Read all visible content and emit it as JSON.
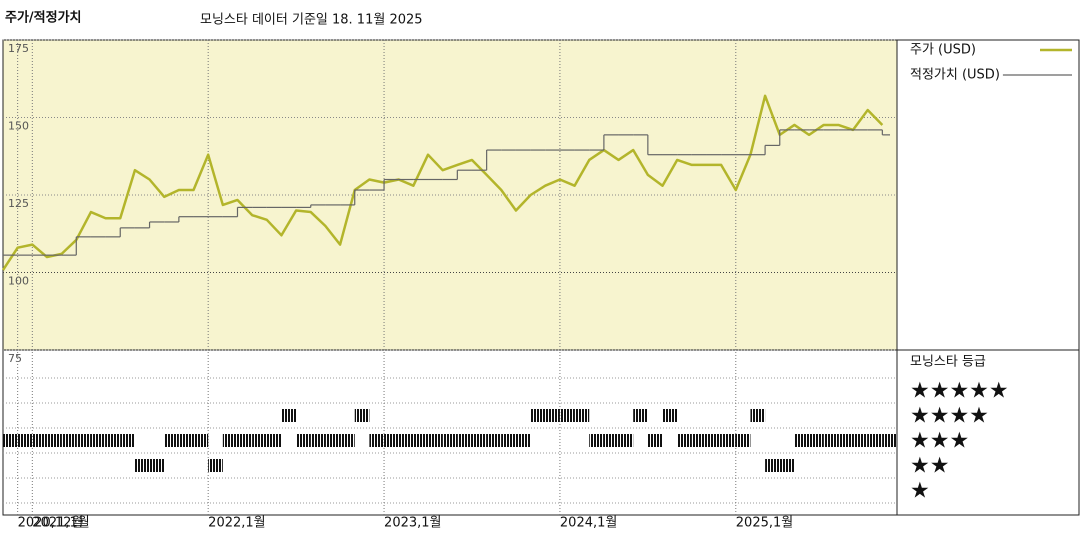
{
  "chart_data": [
    {
      "type": "line",
      "title": "주가/적정가치",
      "subtitle": "모닝스타 데이터 기준일 18. 11월 2025",
      "x": [
        "2020-11",
        "2020-12",
        "2021-01",
        "2021-02",
        "2021-03",
        "2021-04",
        "2021-05",
        "2021-06",
        "2021-07",
        "2021-08",
        "2021-09",
        "2021-10",
        "2021-11",
        "2021-12",
        "2022-01",
        "2022-02",
        "2022-03",
        "2022-04",
        "2022-05",
        "2022-06",
        "2022-07",
        "2022-08",
        "2022-09",
        "2022-10",
        "2022-11",
        "2022-12",
        "2023-01",
        "2023-02",
        "2023-03",
        "2023-04",
        "2023-05",
        "2023-06",
        "2023-07",
        "2023-08",
        "2023-09",
        "2023-10",
        "2023-11",
        "2023-12",
        "2024-01",
        "2024-02",
        "2024-03",
        "2024-04",
        "2024-05",
        "2024-06",
        "2024-07",
        "2024-08",
        "2024-09",
        "2024-10",
        "2024-11",
        "2024-12",
        "2025-01",
        "2025-02",
        "2025-03",
        "2025-04",
        "2025-05",
        "2025-06",
        "2025-07",
        "2025-08",
        "2025-09",
        "2025-10",
        "2025-11"
      ],
      "series": [
        {
          "name": "주가 (USD)",
          "color": "#b3b52b",
          "values": [
            100.8,
            108,
            109,
            105,
            106,
            110.5,
            119.5,
            117.5,
            117.5,
            133,
            130,
            124.4,
            126.6,
            126.6,
            138,
            121.8,
            123.4,
            118.5,
            117,
            112,
            120,
            119.5,
            115,
            109,
            126.6,
            130,
            129,
            130,
            128,
            138,
            133,
            134.7,
            136.3,
            131.5,
            126.6,
            120,
            125,
            128,
            130,
            128,
            136.3,
            139.5,
            136.3,
            139.5,
            131.5,
            128,
            136.3,
            134.7,
            134.7,
            134.7,
            126.6,
            138,
            157,
            144.4,
            147.6,
            144.4,
            147.6,
            147.6,
            146,
            152.4,
            147.6
          ]
        },
        {
          "name": "적정가치 (USD)",
          "color": "#666666",
          "step": true,
          "values": [
            105.6,
            105.6,
            105.6,
            105.6,
            105.6,
            111.5,
            111.5,
            111.5,
            114.4,
            114.4,
            116.3,
            116.3,
            118,
            118,
            118,
            118,
            121,
            121,
            121,
            121,
            121,
            121.8,
            121.8,
            121.8,
            126.6,
            126.6,
            130,
            130,
            130,
            130,
            130,
            133,
            133,
            139.5,
            139.5,
            139.5,
            139.5,
            139.5,
            139.5,
            139.5,
            139.5,
            144.4,
            144.4,
            144.4,
            138,
            138,
            138,
            138,
            138,
            138,
            138,
            138,
            141,
            146,
            146,
            146,
            146,
            146,
            146,
            146,
            144.4
          ]
        }
      ],
      "xlim": [
        "2020-11",
        "2025-12"
      ],
      "xticks": [
        {
          "value": "2020-12",
          "label": "2020,12월"
        },
        {
          "value": "2021-01",
          "label": "2021,1월"
        },
        {
          "value": "2022-01",
          "label": "2022,1월"
        },
        {
          "value": "2023-01",
          "label": "2023,1월"
        },
        {
          "value": "2024-01",
          "label": "2024,1월"
        },
        {
          "value": "2025-01",
          "label": "2025,1월"
        }
      ],
      "ylim": [
        75,
        175
      ],
      "yticks": [
        75,
        100,
        125,
        150,
        175
      ],
      "grid": true,
      "background": "#f7f4cf"
    },
    {
      "type": "rating",
      "title": "모닝스타 등급",
      "color": "#111111",
      "values": [
        3,
        3,
        3,
        3,
        3,
        3,
        3,
        3,
        3,
        2,
        2,
        3,
        3,
        3,
        2,
        3,
        3,
        3,
        3,
        4,
        3,
        3,
        3,
        3,
        4,
        3,
        3,
        3,
        3,
        3,
        3,
        3,
        3,
        3,
        3,
        3,
        4,
        4,
        4,
        4,
        3,
        3,
        3,
        4,
        3,
        4,
        3,
        3,
        3,
        3,
        3,
        4,
        2,
        2,
        3,
        3,
        3,
        3,
        3,
        3,
        3
      ],
      "levels": [
        {
          "value": 5,
          "label": "★★★★★"
        },
        {
          "value": 4,
          "label": "★★★★"
        },
        {
          "value": 3,
          "label": "★★★"
        },
        {
          "value": 2,
          "label": "★★"
        },
        {
          "value": 1,
          "label": "★"
        }
      ]
    }
  ]
}
